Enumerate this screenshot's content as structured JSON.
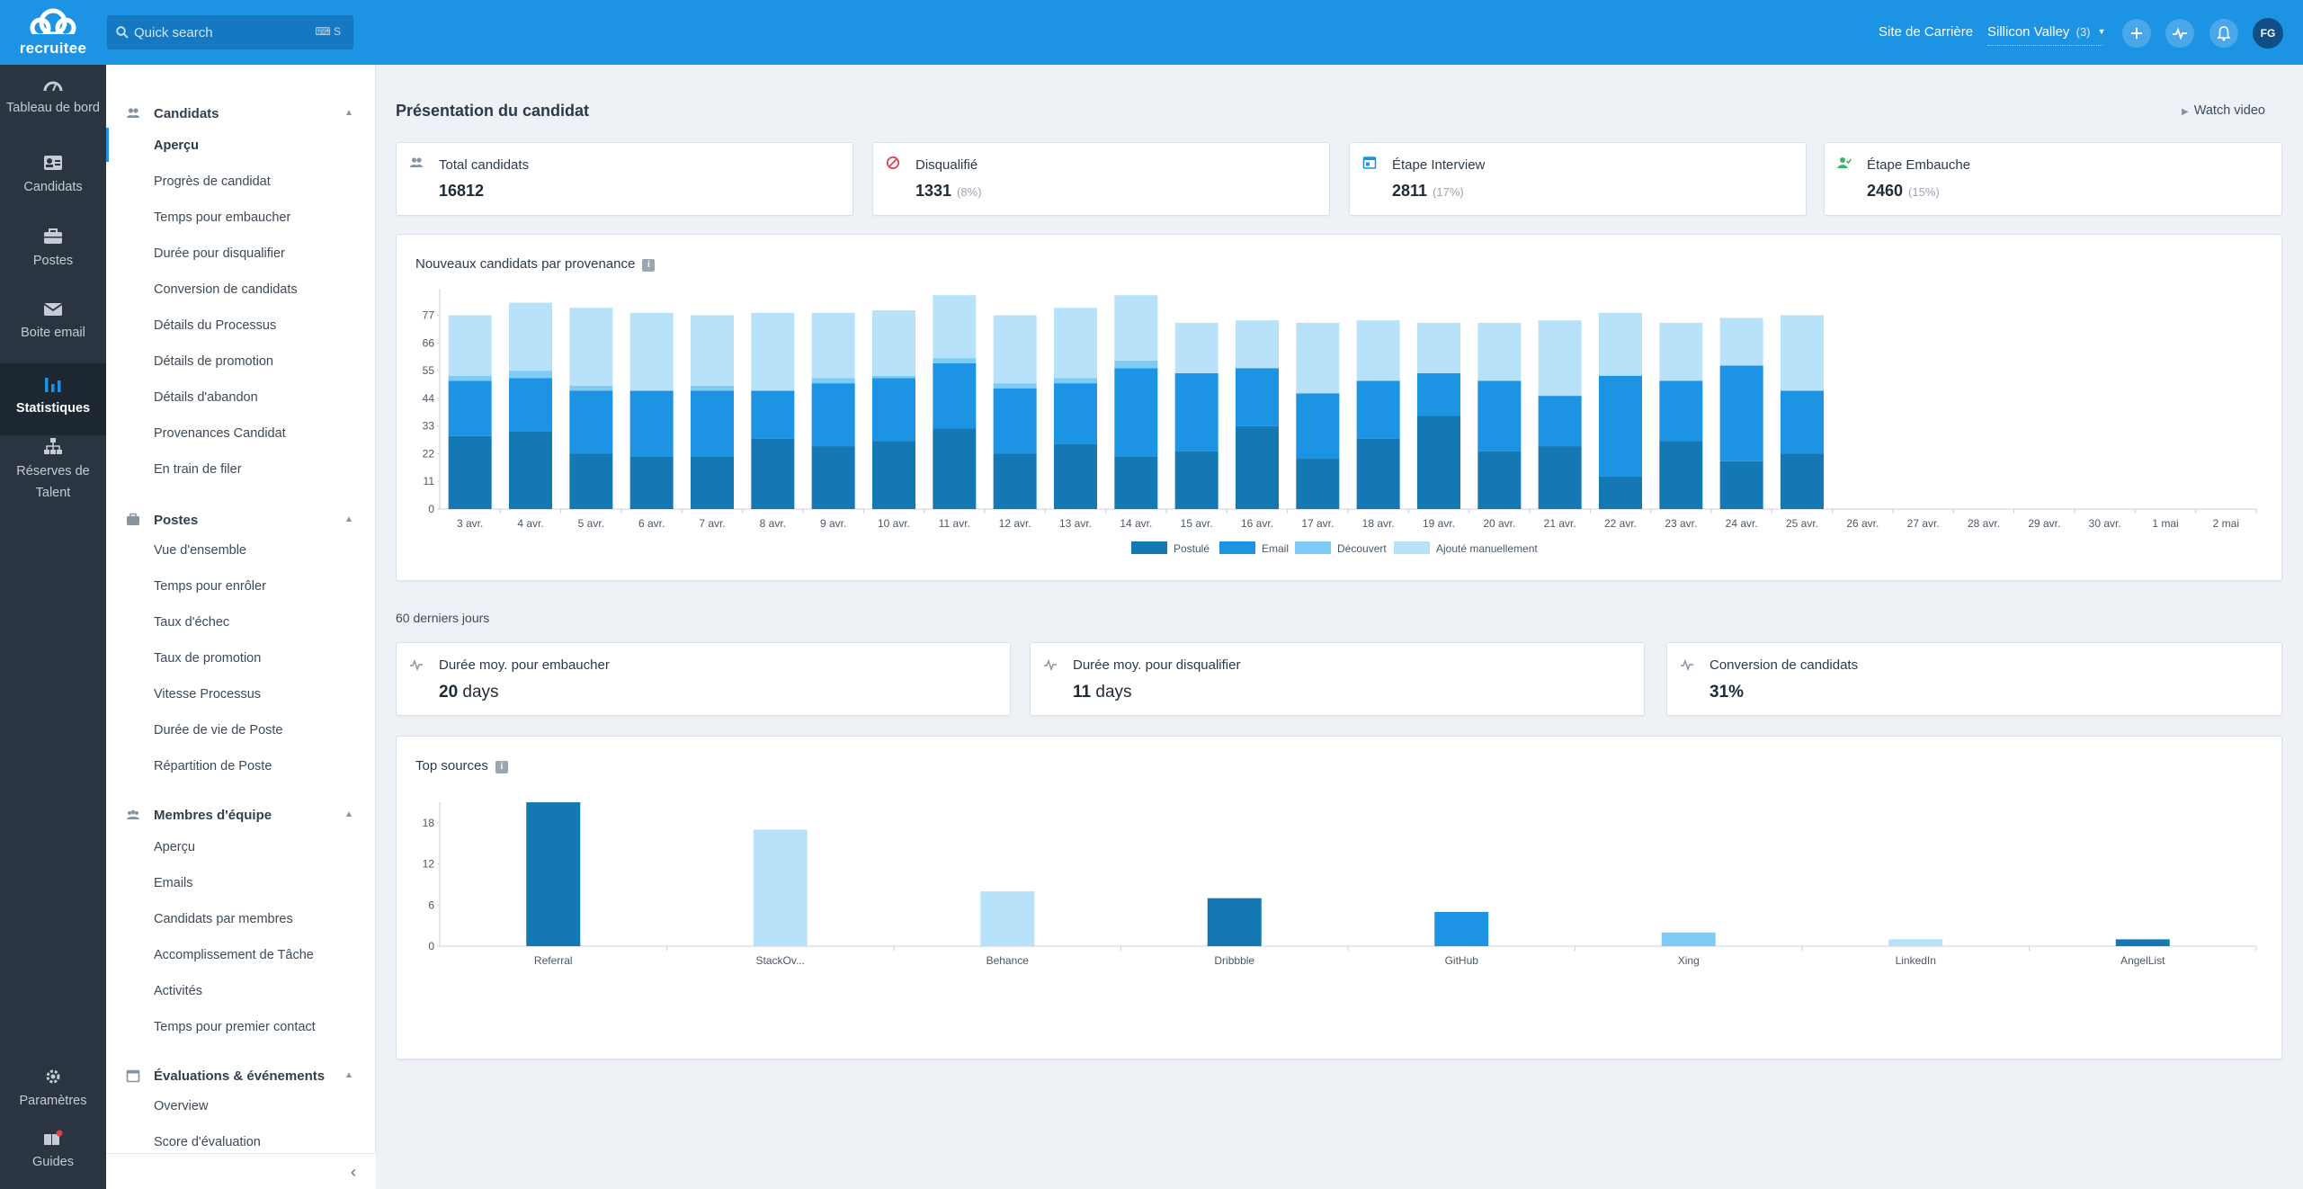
{
  "brand": {
    "name": "recruitee"
  },
  "search": {
    "placeholder": "Quick search",
    "shortcut": "⌨ S"
  },
  "topbar": {
    "career_site": "Site de Carrière",
    "company": "Sillicon Valley",
    "company_count": "(3)",
    "avatar": "FG"
  },
  "nav": [
    {
      "label": "Tableau de bord",
      "icon": "dashboard-icon"
    },
    {
      "label": "Candidats",
      "icon": "candidates-icon"
    },
    {
      "label": "Postes",
      "icon": "briefcase-icon"
    },
    {
      "label": "Boite email",
      "icon": "mail-icon"
    },
    {
      "label": "Statistiques",
      "icon": "stats-icon",
      "active": true
    },
    {
      "label": "Réserves de Talent",
      "icon": "talent-pool-icon"
    },
    {
      "label": "Paramètres",
      "icon": "gear-icon"
    },
    {
      "label": "Guides",
      "icon": "book-icon"
    }
  ],
  "sections": [
    {
      "title": "Candidats",
      "items": [
        "Aperçu",
        "Progrès de candidat",
        "Temps pour embaucher",
        "Durée pour disqualifier",
        "Conversion de candidats",
        "Détails du Processus",
        "Détails de promotion",
        "Détails d'abandon",
        "Provenances Candidat",
        "En train de filer"
      ]
    },
    {
      "title": "Postes",
      "items": [
        "Vue d'ensemble",
        "Temps pour enrôler",
        "Taux d'échec",
        "Taux de promotion",
        "Vitesse Processus",
        "Durée de vie de Poste",
        "Répartition de Poste"
      ]
    },
    {
      "title": "Membres d'équipe",
      "items": [
        "Aperçu",
        "Emails",
        "Candidats par membres",
        "Accomplissement de Tâche",
        "Activités",
        "Temps pour premier contact"
      ]
    },
    {
      "title": "Évaluations & événements",
      "items": [
        "Overview",
        "Score d'évaluation"
      ]
    }
  ],
  "page": {
    "title": "Présentation du candidat",
    "watch_video": "Watch video",
    "period": "60 derniers jours"
  },
  "kpis": [
    {
      "label": "Total candidats",
      "value": "16812",
      "pct": "",
      "icon": "people-icon"
    },
    {
      "label": "Disqualifié",
      "value": "1331",
      "pct": "(8%)",
      "icon": "disqualified-icon"
    },
    {
      "label": "Étape Interview",
      "value": "2811",
      "pct": "(17%)",
      "icon": "interview-icon"
    },
    {
      "label": "Étape Embauche",
      "value": "2460",
      "pct": "(15%)",
      "icon": "hired-icon"
    }
  ],
  "stats": [
    {
      "label": "Durée moy. pour embaucher",
      "value": "20",
      "unit": "days"
    },
    {
      "label": "Durée moy. pour disqualifier",
      "value": "11",
      "unit": "days"
    },
    {
      "label": "Conversion de candidats",
      "value": "31%",
      "unit": ""
    }
  ],
  "colors": {
    "postule": "#1478b5",
    "email": "#1c93e3",
    "decouvert": "#7ecbf5",
    "manuel": "#b8e2fa",
    "accent": "#1c93e3"
  },
  "chart_data": [
    {
      "type": "bar",
      "stacked": true,
      "title": "Nouveaux candidats par provenance",
      "categories": [
        "3 avr.",
        "4 avr.",
        "5 avr.",
        "6 avr.",
        "7 avr.",
        "8 avr.",
        "9 avr.",
        "10 avr.",
        "11 avr.",
        "12 avr.",
        "13 avr.",
        "14 avr.",
        "15 avr.",
        "16 avr.",
        "17 avr.",
        "18 avr.",
        "19 avr.",
        "20 avr.",
        "21 avr.",
        "22 avr.",
        "23 avr.",
        "24 avr.",
        "25 avr.",
        "26 avr.",
        "27 avr.",
        "28 avr.",
        "29 avr.",
        "30 avr.",
        "1 mai",
        "2 mai"
      ],
      "yticks": [
        0,
        11,
        22,
        33,
        44,
        55,
        66,
        77
      ],
      "ylim": [
        0,
        84
      ],
      "series": [
        {
          "name": "Postulé",
          "values": [
            29,
            31,
            22,
            21,
            21,
            28,
            25,
            27,
            32,
            22,
            26,
            21,
            23,
            33,
            20,
            28,
            37,
            23,
            25,
            13,
            27,
            19,
            22,
            0,
            0,
            0,
            0,
            0,
            0,
            0
          ]
        },
        {
          "name": "Email",
          "values": [
            22,
            21,
            25,
            26,
            26,
            19,
            25,
            25,
            26,
            26,
            24,
            35,
            31,
            23,
            26,
            23,
            17,
            28,
            20,
            40,
            24,
            38,
            25,
            0,
            0,
            0,
            0,
            0,
            0,
            0
          ]
        },
        {
          "name": "Découvert",
          "values": [
            2,
            3,
            2,
            0,
            2,
            0,
            2,
            1,
            2,
            2,
            2,
            3,
            0,
            0,
            0,
            0,
            0,
            0,
            0,
            0,
            0,
            0,
            0,
            0,
            0,
            0,
            0,
            0,
            0,
            0
          ]
        },
        {
          "name": "Ajouté manuellement",
          "values": [
            24,
            27,
            31,
            31,
            28,
            31,
            26,
            26,
            25,
            27,
            28,
            26,
            20,
            19,
            28,
            24,
            20,
            23,
            30,
            25,
            23,
            19,
            30,
            0,
            0,
            0,
            0,
            0,
            0,
            0
          ]
        }
      ],
      "legend": "bottom-center"
    },
    {
      "type": "bar",
      "title": "Top sources",
      "categories": [
        "Referral",
        "StackOv...",
        "Behance",
        "Dribbble",
        "GitHub",
        "Xing",
        "LinkedIn",
        "AngelList"
      ],
      "values": [
        21,
        17,
        8,
        7,
        5,
        2,
        1,
        1
      ],
      "bar_colors": [
        "#1478b5",
        "#b8e2fa",
        "#b8e2fa",
        "#1478b5",
        "#1c93e3",
        "#7ecbf5",
        "#b8e2fa",
        "#1478b5"
      ],
      "yticks": [
        0,
        6,
        12,
        18
      ],
      "ylim": [
        0,
        21
      ]
    }
  ]
}
